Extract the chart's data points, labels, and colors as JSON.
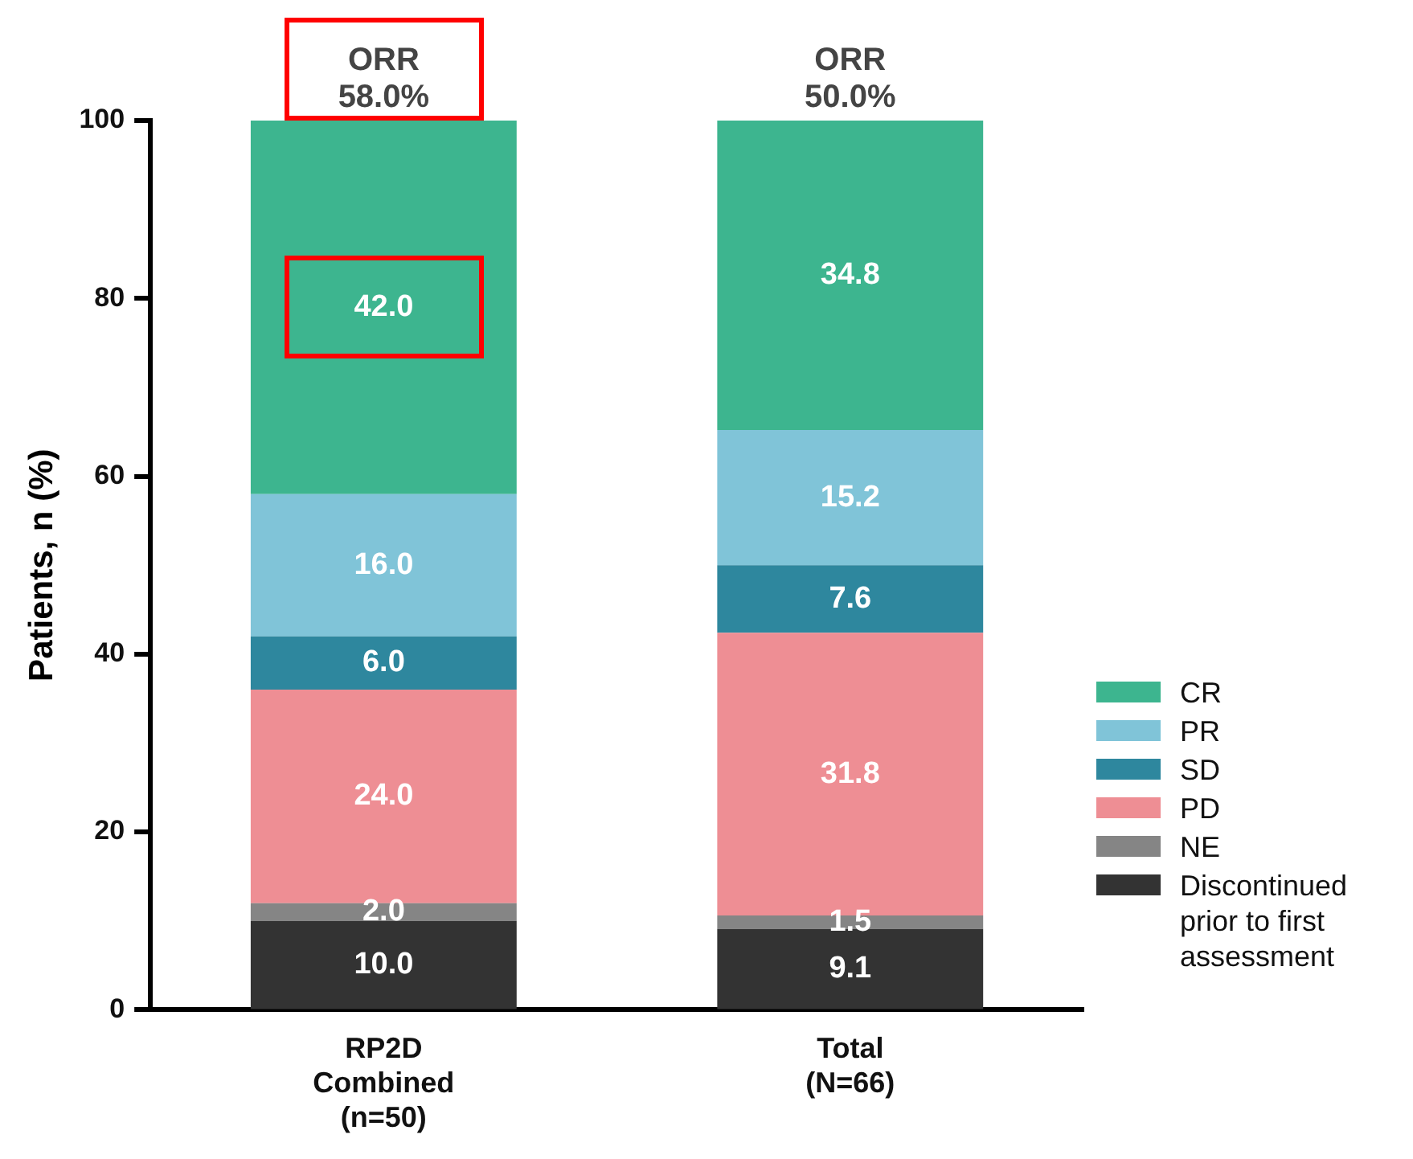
{
  "chart_data": {
    "type": "bar",
    "stacked": true,
    "ylabel": "Patients, n (%)",
    "categories": [
      "RP2D\nCombined\n(n=50)",
      "Total\n(N=66)"
    ],
    "series": [
      {
        "name": "Discontinued prior to first assessment",
        "color": "#333333",
        "values": [
          10.0,
          9.1
        ],
        "value_labels": [
          "10.0",
          "9.1"
        ]
      },
      {
        "name": "NE",
        "color": "#858585",
        "values": [
          2.0,
          1.5
        ],
        "value_labels": [
          "2.0",
          "1.5"
        ]
      },
      {
        "name": "PD",
        "color": "#ee8e94",
        "values": [
          24.0,
          31.8
        ],
        "value_labels": [
          "24.0",
          "31.8"
        ]
      },
      {
        "name": "SD",
        "color": "#2e879e",
        "values": [
          6.0,
          7.6
        ],
        "value_labels": [
          "6.0",
          "7.6"
        ]
      },
      {
        "name": "PR",
        "color": "#80c4d8",
        "values": [
          16.0,
          15.2
        ],
        "value_labels": [
          "16.0",
          "15.2"
        ]
      },
      {
        "name": "CR",
        "color": "#3db58f",
        "values": [
          42.0,
          34.8
        ],
        "value_labels": [
          "42.0",
          "34.8"
        ]
      }
    ],
    "ylim": [
      0,
      100
    ],
    "yticks": [
      0,
      20,
      40,
      60,
      80,
      100
    ],
    "grid": false,
    "legend": "right",
    "annotations": [
      {
        "text": "ORR\n58.0%",
        "x": "RP2D\nCombined\n(n=50)",
        "y": 100
      },
      {
        "text": "ORR\n50.0%",
        "x": "Total\n(N=66)",
        "y": 100
      }
    ]
  }
}
